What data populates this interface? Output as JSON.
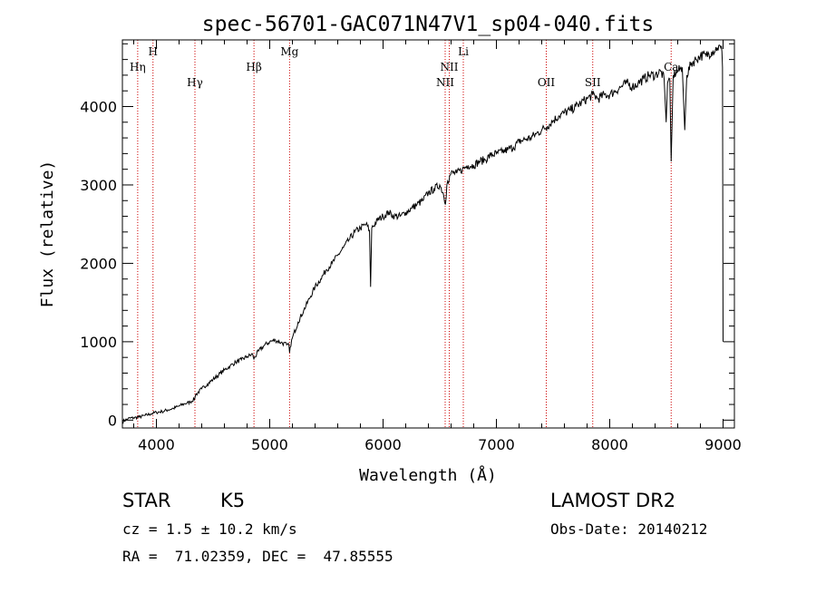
{
  "chart_data": {
    "type": "line",
    "title": "spec-56701-GAC071N47V1_sp04-040.fits",
    "xlabel": "Wavelength (Å)",
    "ylabel": "Flux (relative)",
    "xlim": [
      3700,
      9100
    ],
    "ylim": [
      -100,
      4850
    ],
    "xticks": [
      4000,
      5000,
      6000,
      7000,
      8000,
      9000
    ],
    "yticks": [
      0,
      1000,
      2000,
      3000,
      4000
    ],
    "xtick_labels": [
      "4000",
      "5000",
      "6000",
      "7000",
      "8000",
      "9000"
    ],
    "ytick_labels": [
      "0",
      "1000",
      "2000",
      "3000",
      "4000"
    ],
    "grid": false,
    "line_color": "#000000",
    "marker_color": "#cc0000",
    "series": [
      {
        "x": [
          3700,
          3750,
          3800,
          3850,
          3900,
          3950,
          4000,
          4050,
          4100,
          4150,
          4200,
          4250,
          4300,
          4340,
          4345,
          4400,
          4450,
          4500,
          4550,
          4600,
          4650,
          4700,
          4750,
          4800,
          4850,
          4860,
          4900,
          4950,
          5000,
          5050,
          5100,
          5150,
          5170,
          5175,
          5180,
          5200,
          5250,
          5300,
          5350,
          5400,
          5450,
          5500,
          5550,
          5600,
          5650,
          5700,
          5750,
          5800,
          5850,
          5880,
          5890,
          5900,
          5950,
          6000,
          6050,
          6100,
          6150,
          6200,
          6250,
          6300,
          6350,
          6400,
          6450,
          6500,
          6530,
          6550,
          6563,
          6570,
          6600,
          6650,
          6700,
          6750,
          6800,
          6850,
          6900,
          6950,
          7000,
          7050,
          7100,
          7150,
          7200,
          7250,
          7300,
          7350,
          7400,
          7450,
          7500,
          7550,
          7600,
          7650,
          7700,
          7750,
          7800,
          7850,
          7900,
          7950,
          8000,
          8050,
          8100,
          8150,
          8200,
          8250,
          8300,
          8350,
          8400,
          8450,
          8480,
          8498,
          8510,
          8530,
          8542,
          8560,
          8600,
          8640,
          8662,
          8680,
          8720,
          8760,
          8800,
          8850,
          8900,
          8950,
          8980,
          8990,
          8995,
          9000
        ],
        "y": [
          -20,
          20,
          30,
          40,
          60,
          80,
          100,
          110,
          130,
          150,
          180,
          210,
          230,
          280,
          320,
          400,
          460,
          520,
          580,
          640,
          690,
          740,
          770,
          810,
          840,
          780,
          880,
          950,
          1000,
          1020,
          990,
          960,
          950,
          860,
          930,
          1050,
          1250,
          1400,
          1550,
          1700,
          1800,
          1920,
          2000,
          2100,
          2200,
          2300,
          2400,
          2450,
          2500,
          2420,
          1700,
          2450,
          2550,
          2600,
          2650,
          2600,
          2600,
          2650,
          2700,
          2750,
          2800,
          2900,
          2950,
          3000,
          2900,
          2750,
          3000,
          3050,
          3150,
          3150,
          3200,
          3250,
          3250,
          3300,
          3320,
          3380,
          3400,
          3420,
          3450,
          3480,
          3550,
          3580,
          3600,
          3650,
          3700,
          3750,
          3820,
          3880,
          3920,
          3950,
          4000,
          4050,
          4100,
          4150,
          4100,
          4150,
          4150,
          4200,
          4250,
          4300,
          4250,
          4300,
          4350,
          4400,
          4400,
          4450,
          4350,
          3800,
          4300,
          4350,
          3300,
          4400,
          4450,
          4500,
          3700,
          4400,
          4550,
          4600,
          4650,
          4650,
          4700,
          4750,
          4750,
          4700,
          4500,
          1000
        ]
      }
    ],
    "markers": [
      {
        "label": "H",
        "x": 3970,
        "row": 0
      },
      {
        "label": "Mg",
        "x": 5175,
        "row": 0
      },
      {
        "label": "Li",
        "x": 6708,
        "row": 0
      },
      {
        "label": "NII",
        "x": 6584,
        "row": 1
      },
      {
        "label": "Ca",
        "x": 8542,
        "row": 1
      },
      {
        "label": "Hη",
        "x": 3835,
        "row": 1
      },
      {
        "label": "Hβ",
        "x": 4861,
        "row": 1
      },
      {
        "label": "Hγ",
        "x": 4340,
        "row": 2
      },
      {
        "label": "NII",
        "x": 6548,
        "row": 2
      },
      {
        "label": "OII",
        "x": 7440,
        "row": 2
      },
      {
        "label": "SII",
        "x": 7850,
        "row": 2
      }
    ]
  },
  "info": {
    "class": "STAR",
    "subclass": "K5",
    "survey": "LAMOST DR2",
    "cz": "cz = 1.5 ± 10.2 km/s",
    "obs_date": "Obs-Date: 20140212",
    "coords": "RA =  71.02359, DEC =  47.85555"
  }
}
